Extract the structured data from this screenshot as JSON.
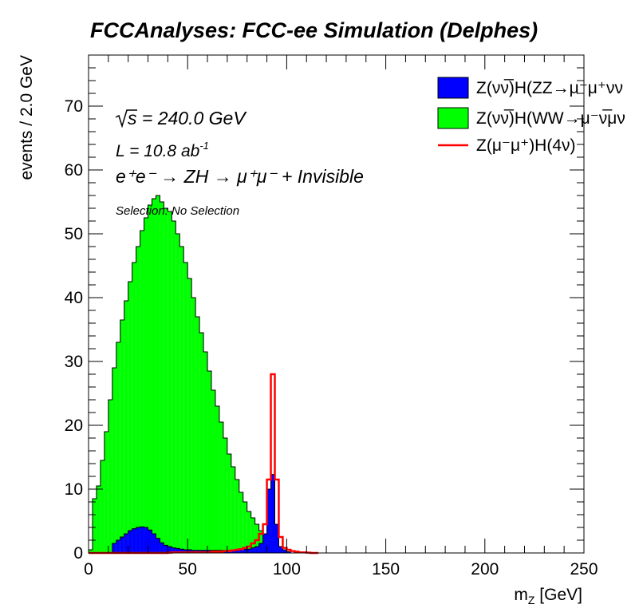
{
  "chart_data": {
    "type": "histogram",
    "title": "FCCAnalyses: FCC-ee Simulation (Delphes)",
    "xlabel": "m",
    "xlabel_sub": "Z",
    "xlabel_unit": " [GeV]",
    "ylabel": "events / 2.0 GeV",
    "xlim": [
      0,
      250
    ],
    "ylim": [
      0,
      78
    ],
    "bin_width": 2.0,
    "x_ticks": [
      "0",
      "50",
      "100",
      "150",
      "200",
      "250"
    ],
    "y_ticks": [
      "0",
      "10",
      "20",
      "30",
      "40",
      "50",
      "60",
      "70"
    ],
    "annotations": {
      "sqrt_s": "s = 240.0 GeV",
      "lumi": "L = 10.8 ab",
      "lumi_exp": "-1",
      "process": "e⁺e⁻ → ZH → μ⁺μ⁻ + Invisible",
      "selection": "Selection: No Selection"
    },
    "legend_position": "top-right",
    "legend": [
      {
        "label": "Z(νν̅)H(ZZ→μ⁻μ⁺νν",
        "style": "fill",
        "color": "#0000ff"
      },
      {
        "label": "Z(νν̅)H(WW→μ⁻ν̅μν",
        "style": "fill",
        "color": "#00ff00"
      },
      {
        "label": "Z(μ⁻μ⁺)H(4ν)",
        "style": "line",
        "color": "#ff0000"
      }
    ],
    "series": [
      {
        "name": "Z(νν̅)H(WW→μ⁻ν̅μν",
        "style": "stacked-fill",
        "color": "#00ff00",
        "x_start": 0,
        "values": [
          0.5,
          8.5,
          10.5,
          14.5,
          19,
          24,
          29,
          33,
          36.5,
          39.5,
          42.5,
          45.5,
          48,
          50.5,
          52.5,
          54.5,
          55.5,
          56,
          55,
          54,
          53.5,
          52,
          50,
          48,
          45.5,
          43,
          40,
          37,
          34.5,
          31.5,
          28.5,
          25.5,
          23,
          20.5,
          18,
          15.5,
          13.5,
          11.5,
          9.5,
          8,
          6.5,
          5.5,
          4.5,
          3.5,
          3,
          2,
          1.5,
          0.5,
          0.5,
          0,
          0,
          0,
          0,
          0,
          0,
          0,
          0,
          0
        ]
      },
      {
        "name": "Z(νν̅)H(ZZ→μ⁻μ⁺νν",
        "style": "fill",
        "color": "#0000ff",
        "x_start": 0,
        "values": [
          0,
          0,
          0,
          0,
          0,
          0,
          1.5,
          2,
          2.5,
          3,
          3.5,
          3.8,
          4,
          4.1,
          4,
          3.6,
          3,
          2.3,
          1.6,
          1.2,
          1,
          0.8,
          0.7,
          0.6,
          0.5,
          0.5,
          0.4,
          0.4,
          0.4,
          0.4,
          0.4,
          0.4,
          0.4,
          0.4,
          0.4,
          0.4,
          0.5,
          0.5,
          0.5,
          0.6,
          0.6,
          0.8,
          1,
          1.5,
          3,
          10,
          12.3,
          4.5,
          1,
          0.5,
          0.2,
          0,
          0,
          0,
          0,
          0,
          0,
          0
        ]
      },
      {
        "name": "Z(μ⁻μ⁺)H(4ν)",
        "style": "line",
        "color": "#ff0000",
        "x_start": 0,
        "values": [
          0,
          0,
          0,
          0,
          0,
          0,
          0,
          0,
          0,
          0,
          0,
          0,
          0,
          0,
          0,
          0,
          0,
          0,
          0,
          0,
          0.05,
          0.1,
          0.1,
          0.1,
          0.1,
          0.1,
          0.1,
          0.1,
          0.1,
          0.1,
          0.1,
          0.2,
          0.2,
          0.2,
          0.3,
          0.3,
          0.4,
          0.5,
          0.6,
          0.8,
          1,
          1.5,
          2,
          3,
          4.5,
          11.5,
          28,
          11.5,
          2.5,
          0.8,
          0.5,
          0.3,
          0.2,
          0.1,
          0.1,
          0.05,
          0,
          0
        ]
      }
    ]
  }
}
